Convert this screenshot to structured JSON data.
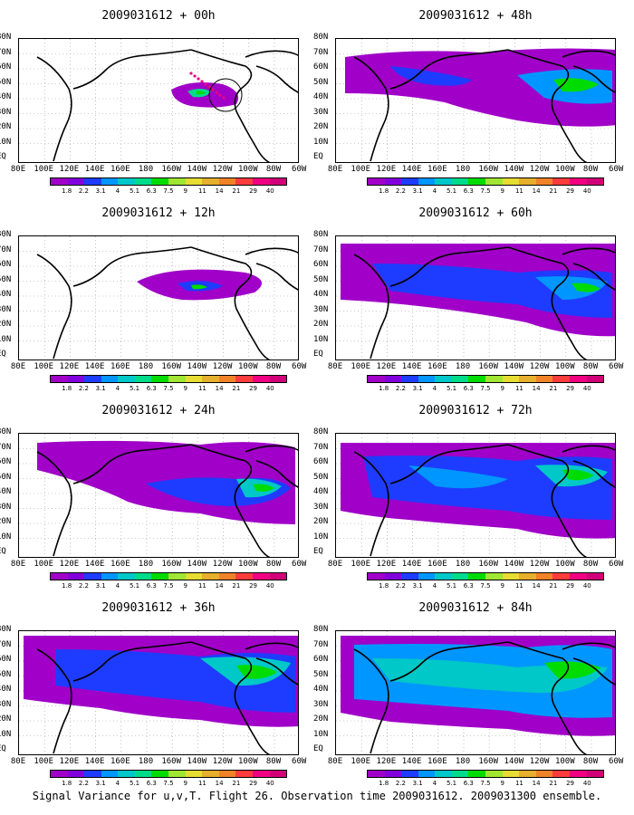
{
  "footer": "Signal Variance for u,v,T. Flight 26. Observation time 2009031612. 2009031300 ensemble.",
  "lat_labels": [
    "80N",
    "70N",
    "60N",
    "50N",
    "40N",
    "30N",
    "20N",
    "10N",
    "EQ"
  ],
  "lon_labels": [
    "80E",
    "100E",
    "120E",
    "140E",
    "160E",
    "180",
    "160W",
    "140W",
    "120W",
    "100W",
    "80W",
    "60W"
  ],
  "colorbar": {
    "labels": [
      "1.8",
      "2.2",
      "3.1",
      "4",
      "5.1",
      "6.3",
      "7.5",
      "9",
      "11",
      "14",
      "21",
      "29",
      "40"
    ],
    "colors": [
      "#a000c8",
      "#8200dc",
      "#1e3cff",
      "#0096ff",
      "#00c8c8",
      "#00dc8c",
      "#00dc00",
      "#a0e632",
      "#e6dc32",
      "#e6af2d",
      "#f08228",
      "#fa3c3c",
      "#f00082"
    ]
  },
  "panels": [
    {
      "title": "2009031612 + 00h"
    },
    {
      "title": "2009031612 + 48h"
    },
    {
      "title": "2009031612 + 12h"
    },
    {
      "title": "2009031612 + 60h"
    },
    {
      "title": "2009031612 + 24h"
    },
    {
      "title": "2009031612 + 72h"
    },
    {
      "title": "2009031612 + 36h"
    },
    {
      "title": "2009031612 + 84h"
    }
  ]
}
